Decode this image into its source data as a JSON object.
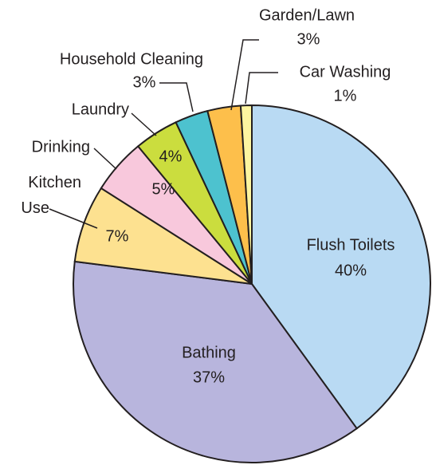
{
  "chart_data": {
    "type": "pie",
    "categories": [
      "Flush Toilets",
      "Bathing",
      "Kitchen Use",
      "Drinking",
      "Laundry",
      "Household Cleaning",
      "Garden/Lawn",
      "Car Washing"
    ],
    "values": [
      40,
      37,
      7,
      5,
      4,
      3,
      3,
      1
    ],
    "value_labels": [
      "40%",
      "37%",
      "7%",
      "5%",
      "4%",
      "3%",
      "3%",
      "1%"
    ],
    "colors": [
      "#b9daf3",
      "#b8b5dd",
      "#fde190",
      "#f8c8dc",
      "#cbdd3e",
      "#4dc2cf",
      "#fdbf4b",
      "#fdf5a0"
    ]
  }
}
